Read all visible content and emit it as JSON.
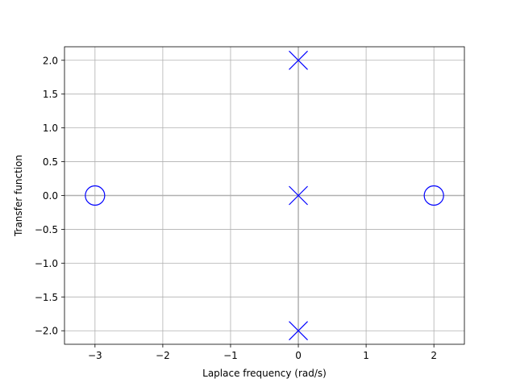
{
  "chart_data": {
    "type": "scatter",
    "xlabel": "Laplace frequency (rad/s)",
    "ylabel": "Transfer function",
    "xlim": [
      -3.45,
      2.45
    ],
    "ylim": [
      -2.2,
      2.2
    ],
    "grid": true,
    "x_ticks": [
      -3,
      -2,
      -1,
      0,
      1,
      2
    ],
    "x_tick_labels": [
      "−3",
      "−2",
      "−1",
      "0",
      "1",
      "2"
    ],
    "y_ticks": [
      2.0,
      1.5,
      1.0,
      0.5,
      0.0,
      -0.5,
      -1.0,
      -1.5,
      -2.0
    ],
    "y_tick_labels": [
      "2.0",
      "1.5",
      "1.0",
      "0.5",
      "0.0",
      "−0.5",
      "−1.0",
      "−1.5",
      "−2.0"
    ],
    "series": [
      {
        "marker": "circle",
        "color": "#0000ff",
        "points": [
          {
            "x": -3,
            "y": 0
          },
          {
            "x": 2,
            "y": 0
          }
        ]
      },
      {
        "marker": "x",
        "color": "#0000ff",
        "points": [
          {
            "x": 0,
            "y": 2
          },
          {
            "x": 0,
            "y": 0
          },
          {
            "x": 0,
            "y": -2
          }
        ]
      }
    ],
    "axis_lines": {
      "x0": true,
      "y0": true,
      "color": "#b0b0b0"
    }
  }
}
